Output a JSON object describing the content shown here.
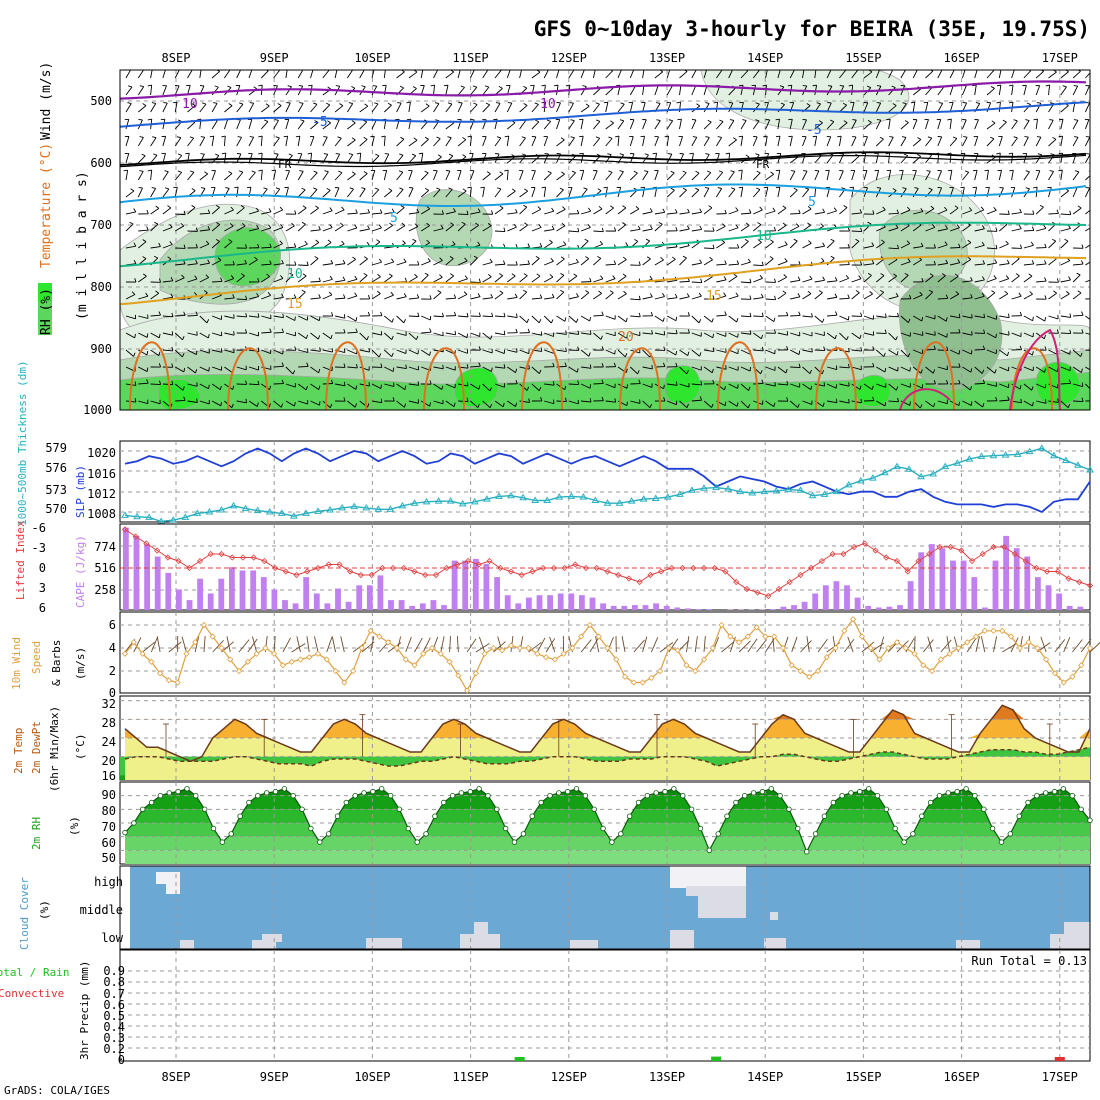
{
  "title": "GFS 0~10day 3-hourly for BEIRA (35E, 19.75S)",
  "footer": "GrADS: COLA/IGES",
  "dates": [
    "8SEP",
    "9SEP",
    "10SEP",
    "11SEP",
    "12SEP",
    "13SEP",
    "14SEP",
    "15SEP",
    "16SEP",
    "17SEP"
  ],
  "colors": {
    "rh_light": "#e1f0e1",
    "rh_mid": "#b4d7b4",
    "rh_dark": "#8fbf8f",
    "rh_green": "#5cd65c",
    "rh_bright": "#2ee62e",
    "wind_purple": "#8a1aa8",
    "wind_blue": "#1f5fd6",
    "temp_cyan": "#1a9fe0",
    "temp_teal": "#1ab78a",
    "temp_orange": "#e0a020",
    "temp_darkorange": "#e07020",
    "temp_magenta": "#d0207a",
    "slp": "#1f3fd6",
    "thick": "#2ab0c0",
    "cape_bar": "#c080f0",
    "lifted": "#e04040",
    "speed": "#e0a040",
    "cloud_bg": "#6ca8d4",
    "cloud_white": "#f2f2f6",
    "precip_green": "#20c020",
    "precip_red": "#e03030"
  },
  "panels": {
    "upper": {
      "ylabel_wind": "Wind (m/s)",
      "ylabel_temp": "Temperature (°C)",
      "ylabel_rh": "RH (%)",
      "ylabel_mb": "(m i l l i b a r s)",
      "levels": [
        "500",
        "600",
        "700",
        "800",
        "900",
        "1000"
      ],
      "contour_labels": [
        {
          "text": "10",
          "color": "#8a1aa8"
        },
        {
          "text": "10",
          "color": "#8a1aa8"
        },
        {
          "text": "-5",
          "color": "#1f5fd6"
        },
        {
          "text": "-5",
          "color": "#1f5fd6"
        },
        {
          "text": "FR",
          "color": "#000000"
        },
        {
          "text": "FR",
          "color": "#000000"
        },
        {
          "text": "5",
          "color": "#1a9fe0"
        },
        {
          "text": "5",
          "color": "#1a9fe0"
        },
        {
          "text": "10",
          "color": "#1ab78a"
        },
        {
          "text": "10",
          "color": "#1ab78a"
        },
        {
          "text": "15",
          "color": "#e0a020"
        },
        {
          "text": "15",
          "color": "#e0a020"
        },
        {
          "text": "20",
          "color": "#e07020"
        }
      ]
    },
    "slp": {
      "ylabel_thick": "1000~500mb Thickness (dm)",
      "ylabel_slp": "SLP (mb)",
      "thick_ticks": [
        "579",
        "576",
        "573",
        "570"
      ],
      "slp_ticks": [
        "1020",
        "1016",
        "1012",
        "1008"
      ]
    },
    "cape": {
      "ylabel_li": "Lifted Index",
      "ylabel_cape": "CAPE (J/kg)",
      "li_ticks": [
        "-6",
        "-3",
        "0",
        "3",
        "6"
      ],
      "cape_ticks": [
        "774",
        "516",
        "258"
      ]
    },
    "wind10": {
      "ylabel_a": "10m Wind",
      "ylabel_b": "Speed",
      "ylabel_c": "& Barbs",
      "ylabel_unit": "(m/s)",
      "ticks": [
        "6",
        "4",
        "2",
        "0"
      ]
    },
    "temp2m": {
      "ylabel_a": "2m Temp",
      "ylabel_b": "2m DewPt",
      "ylabel_c": "(6hr Min/Max)",
      "ylabel_unit": "(°C)",
      "ticks": [
        "32",
        "28",
        "24",
        "20",
        "16"
      ]
    },
    "rh2m": {
      "ylabel": "2m RH",
      "ylabel_unit": "(%)",
      "ticks": [
        "90",
        "80",
        "70",
        "60",
        "50"
      ]
    },
    "cloud": {
      "ylabel": "Cloud Cover",
      "ylabel_unit": "(%)",
      "layers": [
        "high",
        "middle",
        "low"
      ]
    },
    "precip": {
      "ylabel_a": "Total / Rain",
      "ylabel_b": "Convective",
      "ylabel_c": "3hr Precip (mm)",
      "ticks": [
        "0.8",
        "0.6",
        "0.4",
        "0.2",
        "0"
      ],
      "extra_ticks": [
        "0.9",
        "0.7",
        "0.5",
        "0.3",
        "0.1"
      ],
      "run_total": "Run Total = 0.13"
    }
  },
  "chart_data": [
    {
      "type": "line",
      "name": "slp_thickness",
      "x_hours": [
        0,
        3,
        6,
        9,
        12,
        15,
        18,
        21,
        24,
        27,
        30,
        33,
        36,
        39,
        42,
        45,
        48,
        51,
        54,
        57,
        60,
        63,
        66,
        69,
        72,
        75,
        78,
        81,
        84,
        87,
        90,
        93,
        96,
        99,
        102,
        105,
        108,
        111,
        114,
        117,
        120,
        123,
        126,
        129,
        132,
        135,
        138,
        141,
        144,
        147,
        150,
        153,
        156,
        159,
        162,
        165,
        168,
        171,
        174,
        177,
        180,
        183,
        186,
        189,
        192,
        195,
        198,
        201,
        204,
        207,
        210,
        213,
        216,
        219,
        222,
        225,
        228,
        231,
        234,
        237,
        240
      ],
      "series": [
        {
          "name": "SLP (mb)",
          "values": [
            1017.5,
            1018,
            1019,
            1018.5,
            1017.5,
            1018,
            1019,
            1018,
            1017,
            1018,
            1019.5,
            1020.5,
            1019.5,
            1018,
            1019.5,
            1020.5,
            1019.5,
            1018,
            1019,
            1020,
            1019.5,
            1018,
            1019,
            1020,
            1019,
            1017.5,
            1018,
            1019.5,
            1019,
            1017.5,
            1018.5,
            1019.5,
            1019,
            1017.5,
            1018.5,
            1019.5,
            1018.5,
            1017.5,
            1018.5,
            1019,
            1018,
            1017,
            1018,
            1019,
            1018,
            1016.5,
            1016.5,
            1016.5,
            1015,
            1013,
            1014,
            1015,
            1014.5,
            1014,
            1013,
            1012.5,
            1013.5,
            1014,
            1013,
            1012,
            1011.5,
            1012,
            1012,
            1011,
            1011,
            1012,
            1012.5,
            1011,
            1010,
            1009.5,
            1009.5,
            1009.5,
            1009,
            1009.5,
            1009.5,
            1009,
            1008,
            1010,
            1010.5,
            1010.5,
            1014
          ]
        },
        {
          "name": "1000~500mb Thickness (dm)",
          "values": [
            569.5,
            569.3,
            569.2,
            568.6,
            568.8,
            569.2,
            569.8,
            570,
            570.3,
            570.9,
            570.5,
            570.2,
            570,
            569.8,
            569.4,
            569.8,
            570.1,
            570.3,
            570.6,
            570.8,
            570.6,
            570.4,
            570.4,
            570.9,
            571.3,
            571.5,
            571.6,
            571.6,
            571.2,
            571.5,
            571.9,
            572.3,
            572.4,
            572.1,
            571.7,
            571.7,
            572.2,
            572.3,
            572.2,
            571.7,
            571.3,
            571.3,
            571.6,
            571.9,
            572,
            572.2,
            572.6,
            573.2,
            573.5,
            573.6,
            573.4,
            573,
            572.8,
            573,
            573.1,
            573.3,
            573.2,
            572.4,
            572.6,
            573,
            574,
            574.6,
            575,
            575.8,
            576.7,
            576.3,
            575.2,
            575.6,
            576.7,
            577.2,
            577.8,
            578.2,
            578.3,
            578.4,
            578.5,
            578.9,
            579.4,
            578.3,
            577.6,
            576.9,
            576.2
          ]
        }
      ]
    },
    {
      "type": "bar",
      "name": "cape_lifted",
      "cape_values": [
        1000,
        900,
        800,
        650,
        450,
        250,
        120,
        380,
        200,
        380,
        520,
        480,
        480,
        400,
        250,
        120,
        80,
        400,
        200,
        80,
        260,
        100,
        300,
        300,
        420,
        120,
        120,
        50,
        80,
        120,
        60,
        600,
        600,
        620,
        560,
        400,
        180,
        80,
        150,
        180,
        180,
        200,
        200,
        180,
        150,
        80,
        50,
        50,
        60,
        60,
        80,
        50,
        30,
        20,
        10,
        10,
        0,
        5,
        5,
        5,
        5,
        10,
        40,
        60,
        100,
        200,
        300,
        350,
        300,
        150,
        50,
        30,
        40,
        60,
        350,
        700,
        800,
        750,
        600,
        600,
        400,
        30,
        600,
        900,
        750,
        650,
        400,
        300,
        200,
        50,
        40
      ],
      "lifted_values": [
        -5.5,
        -4.5,
        -3.5,
        -2.5,
        -1.5,
        -1,
        0,
        -1,
        -2,
        -2,
        -1.5,
        -1.5,
        -1.5,
        -1,
        0,
        0.5,
        1,
        0.5,
        0,
        -0.5,
        -0.5,
        0.5,
        1,
        1,
        0,
        0,
        0,
        0.5,
        1,
        1,
        0,
        -0.5,
        -1,
        -0.5,
        -1,
        0,
        0.5,
        1,
        0.5,
        0,
        0,
        0,
        -0.5,
        0,
        0,
        0.5,
        1,
        1.5,
        2,
        1,
        0.5,
        0,
        0,
        0,
        0,
        0,
        0.5,
        2,
        3,
        3.5,
        4,
        3,
        2,
        1,
        0,
        -1,
        -2,
        -2,
        -3,
        -3.5,
        -2.5,
        -1.5,
        -1,
        0.5,
        -1,
        -2,
        -3,
        -3,
        -2.5,
        -1,
        -2,
        -3,
        -3,
        -2,
        -1,
        0,
        0.5,
        0.5,
        1.5,
        2,
        2.5
      ]
    },
    {
      "type": "line",
      "name": "wind10_speed",
      "values": [
        3.5,
        4.5,
        3.5,
        2.8,
        1.8,
        1.2,
        1,
        3.5,
        4.5,
        6,
        5,
        4,
        3,
        2,
        2.8,
        3.5,
        4,
        3.5,
        2.5,
        2.8,
        3,
        3.2,
        3.5,
        3,
        2,
        1,
        2,
        4,
        5.5,
        5,
        4.5,
        4,
        3,
        2.5,
        3.5,
        4,
        3.5,
        2.8,
        1.6,
        0.3,
        1.8,
        3.5,
        4,
        3.8,
        4.2,
        4,
        4,
        3.5,
        3.2,
        3,
        3.5,
        4,
        5,
        6,
        5,
        4,
        3,
        1.5,
        1,
        1,
        1.4,
        2,
        4,
        3.8,
        2.5,
        2,
        3,
        4,
        6,
        5,
        4.5,
        5,
        5.8,
        5,
        5,
        4,
        2.5,
        2,
        1.5,
        2,
        3.2,
        4,
        5.5,
        6.5,
        5,
        4,
        3,
        4,
        4.5,
        4,
        3.5,
        2.5,
        2,
        3,
        3.5,
        4,
        4.5,
        5,
        5.5,
        5.5,
        5.5,
        5,
        4,
        4.5,
        4,
        3,
        1.8,
        1,
        1.5,
        2.5,
        4
      ]
    },
    {
      "type": "area",
      "name": "temp2m",
      "ylim": [
        15,
        33
      ],
      "temp_values": [
        26,
        24,
        22,
        22,
        21,
        20,
        19,
        20,
        24,
        26,
        28,
        27,
        25,
        24,
        23,
        22,
        21,
        21,
        24,
        27,
        28,
        27,
        25,
        24,
        23,
        22,
        21,
        21,
        24,
        27,
        28,
        27,
        25,
        24,
        23,
        22,
        21,
        21,
        24,
        27,
        28,
        27,
        25,
        24,
        23,
        22,
        21,
        21,
        24,
        27,
        28,
        27,
        25,
        24,
        23,
        22,
        21,
        21,
        24,
        27,
        29,
        28,
        25,
        24,
        23,
        22,
        21,
        21,
        24,
        27,
        30,
        29,
        25,
        24,
        23,
        22,
        21,
        21,
        25,
        28,
        31,
        30,
        26,
        24,
        23,
        22,
        21,
        21,
        26
      ],
      "dewpt_values": [
        19.5,
        20,
        20,
        20,
        19.5,
        19,
        19,
        19,
        19,
        19.5,
        20,
        20,
        19.5,
        19,
        18.5,
        18.5,
        18.5,
        18,
        19,
        19.5,
        19.5,
        19.5,
        19,
        18.5,
        18,
        18,
        18.5,
        19,
        19,
        19.5,
        20,
        19.5,
        19,
        18.5,
        18.5,
        18.5,
        19,
        19,
        19.5,
        20,
        20,
        20,
        19.5,
        19,
        19,
        19,
        19.5,
        19.5,
        19.5,
        20,
        20,
        20,
        19.5,
        19,
        18,
        18.5,
        19,
        19.5,
        20,
        20,
        20.5,
        20.5,
        20,
        19.5,
        19,
        19,
        19.5,
        20,
        20.5,
        21,
        21,
        20.5,
        20,
        19.5,
        19.5,
        19.5,
        20,
        20.5,
        21,
        21.5,
        21.5,
        21.5,
        21,
        21,
        20.5,
        20.5,
        21,
        21.5,
        22
      ]
    },
    {
      "type": "area",
      "name": "rh2m",
      "ylim": [
        40,
        100
      ],
      "values": [
        63,
        70,
        80,
        85,
        90,
        92,
        93,
        95,
        90,
        80,
        66,
        56,
        62,
        75,
        85,
        90,
        92,
        93,
        95,
        90,
        80,
        66,
        56,
        62,
        75,
        85,
        90,
        92,
        93,
        95,
        90,
        80,
        66,
        56,
        62,
        75,
        85,
        90,
        92,
        93,
        95,
        90,
        80,
        66,
        56,
        62,
        75,
        85,
        90,
        92,
        93,
        95,
        90,
        80,
        66,
        56,
        62,
        75,
        85,
        90,
        92,
        93,
        95,
        90,
        80,
        66,
        50,
        62,
        75,
        85,
        90,
        92,
        93,
        95,
        90,
        80,
        66,
        49,
        62,
        75,
        85,
        90,
        92,
        93,
        95,
        90,
        80,
        66,
        56,
        62,
        75,
        85,
        90,
        92,
        93,
        95,
        90,
        80,
        66,
        56,
        62,
        75,
        85,
        90,
        92,
        93,
        95,
        90,
        80,
        72
      ]
    },
    {
      "type": "table",
      "name": "precip3hr",
      "ylim": [
        0,
        1
      ],
      "bars": [
        {
          "day": "11SEP",
          "hour": 12,
          "value": 0.03,
          "kind": "total"
        },
        {
          "day": "13SEP",
          "hour": 12,
          "value": 0.04,
          "kind": "total"
        },
        {
          "day": "17SEP",
          "hour": 0,
          "value": 0.03,
          "kind": "convective"
        }
      ]
    }
  ]
}
